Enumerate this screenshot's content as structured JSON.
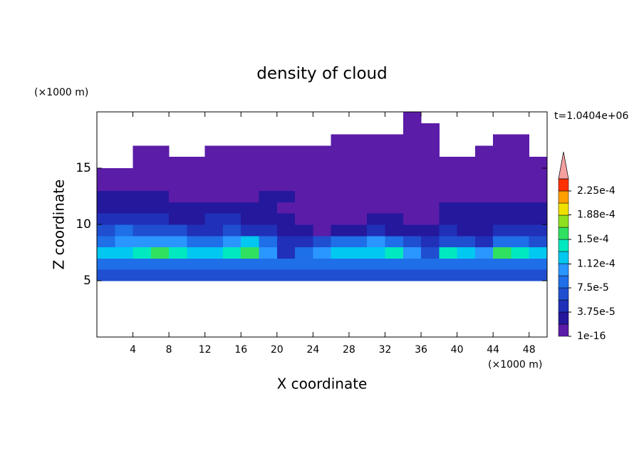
{
  "chart_data": {
    "type": "contour",
    "title": "density of cloud",
    "x_label": "X coordinate",
    "y_label": "Z coordinate",
    "x_unit": "(×1000 m)",
    "y_unit": "(×1000 m)",
    "annotation": "t=1.0404e+06",
    "xlim": [
      0,
      50
    ],
    "ylim": [
      0,
      20
    ],
    "xticks": [
      4,
      8,
      12,
      16,
      20,
      24,
      28,
      32,
      36,
      40,
      44,
      48
    ],
    "yticks": [
      5,
      10,
      15
    ],
    "x": [
      1,
      3,
      5,
      7,
      9,
      11,
      13,
      15,
      17,
      19,
      21,
      23,
      25,
      27,
      29,
      31,
      33,
      35,
      37,
      39,
      41,
      43,
      45,
      47,
      49
    ],
    "y": [
      5.5,
      6.5,
      7.5,
      8.5,
      9.5,
      10.5,
      11.5,
      12.5,
      13.5,
      14.5,
      15.5,
      16.5,
      17.5,
      18.5,
      19.5
    ],
    "z": [
      [
        6e-05,
        6e-05,
        6e-05,
        6e-05,
        6e-05,
        6e-05,
        6e-05,
        6e-05,
        6e-05,
        6e-05,
        6e-05,
        6e-05,
        6e-05,
        6e-05,
        6e-05,
        6e-05,
        6e-05,
        6e-05,
        6e-05,
        6e-05,
        6e-05,
        6e-05,
        6e-05,
        6e-05,
        6e-05
      ],
      [
        8e-05,
        8e-05,
        8e-05,
        8e-05,
        8e-05,
        8e-05,
        8e-05,
        8e-05,
        8e-05,
        8e-05,
        8e-05,
        8e-05,
        8e-05,
        8e-05,
        8e-05,
        8e-05,
        8e-05,
        8e-05,
        8e-05,
        8e-05,
        8e-05,
        8e-05,
        8e-05,
        8e-05,
        8e-05
      ],
      [
        0.00012,
        0.00013,
        0.00014,
        0.00015,
        0.00014,
        0.00013,
        0.00012,
        0.00014,
        0.00015,
        0.0001,
        5e-05,
        9e-05,
        0.00011,
        0.00012,
        0.00013,
        0.00013,
        0.00014,
        0.00011,
        6e-05,
        0.00014,
        0.00013,
        0.0001,
        0.00015,
        0.00014,
        0.00012
      ],
      [
        9e-05,
        0.0001,
        0.0001,
        0.00011,
        0.0001,
        9e-05,
        8e-05,
        0.0001,
        0.00012,
        9e-05,
        4e-05,
        5e-05,
        7e-05,
        8e-05,
        9e-05,
        0.0001,
        9e-05,
        6e-05,
        4e-05,
        6e-05,
        7e-05,
        5e-05,
        8e-05,
        9e-05,
        7e-05
      ],
      [
        7e-05,
        8e-05,
        7e-05,
        6e-05,
        6e-05,
        5e-05,
        5e-05,
        6e-05,
        5e-05,
        4e-05,
        3e-05,
        2e-05,
        1e-05,
        2e-05,
        3e-05,
        4e-05,
        3e-05,
        3e-05,
        3e-05,
        4e-05,
        3e-05,
        3e-05,
        4e-05,
        4e-05,
        4e-05
      ],
      [
        5e-05,
        5e-05,
        4e-05,
        4e-05,
        3e-05,
        3e-05,
        4e-05,
        4e-05,
        3e-05,
        2e-05,
        2e-05,
        1e-05,
        1e-05,
        1e-05,
        1e-05,
        2e-05,
        2e-05,
        1e-05,
        1e-05,
        2e-05,
        2e-05,
        2e-05,
        3e-05,
        3e-05,
        3e-05
      ],
      [
        3e-05,
        3e-05,
        3e-05,
        2e-05,
        2e-05,
        2e-05,
        2e-05,
        3e-05,
        2e-05,
        2e-05,
        1e-05,
        1e-05,
        1e-05,
        1e-05,
        1e-05,
        1e-05,
        1e-05,
        1e-05,
        1e-05,
        2e-05,
        2e-05,
        2e-05,
        2e-05,
        2e-05,
        2e-05
      ],
      [
        2e-05,
        2e-05,
        2e-05,
        2e-05,
        1e-05,
        1e-05,
        1e-05,
        1e-05,
        1e-05,
        2e-05,
        2e-05,
        1e-05,
        1e-05,
        1e-05,
        1e-05,
        1e-05,
        1e-05,
        1e-05,
        1e-05,
        1e-05,
        1e-05,
        1e-05,
        1e-05,
        1e-05,
        1e-05
      ],
      [
        1e-05,
        1e-05,
        1e-05,
        1e-05,
        1e-05,
        1e-05,
        1e-05,
        1e-05,
        1e-05,
        1e-05,
        1e-05,
        1e-05,
        1e-05,
        1e-05,
        1e-05,
        1e-05,
        1e-05,
        1e-05,
        1e-05,
        1e-05,
        1e-05,
        1e-05,
        1e-05,
        1e-05,
        1e-05
      ],
      [
        1e-05,
        1e-05,
        1e-05,
        1e-05,
        1e-05,
        1e-05,
        1e-05,
        1e-05,
        1e-05,
        1e-05,
        1e-05,
        1e-05,
        1e-05,
        1e-05,
        1e-05,
        1e-05,
        1e-05,
        1e-05,
        1e-05,
        1e-05,
        1e-05,
        1e-05,
        1e-05,
        1e-05,
        1e-05
      ],
      [
        null,
        null,
        1e-05,
        1e-05,
        1e-05,
        1e-05,
        1e-05,
        1e-05,
        1e-05,
        1e-05,
        1e-05,
        1e-05,
        1e-05,
        1e-05,
        1e-05,
        1e-05,
        1e-05,
        1e-05,
        1e-05,
        1e-05,
        1e-05,
        1e-05,
        1e-05,
        1e-05,
        1e-05
      ],
      [
        null,
        null,
        1e-05,
        1e-05,
        null,
        null,
        1e-05,
        1e-05,
        1e-05,
        1e-05,
        1e-05,
        1e-05,
        1e-05,
        1e-05,
        1e-05,
        1e-05,
        1e-05,
        1e-05,
        1e-05,
        null,
        null,
        1e-05,
        1e-05,
        1e-05,
        null
      ],
      [
        null,
        null,
        null,
        null,
        null,
        null,
        null,
        null,
        null,
        null,
        null,
        null,
        null,
        1e-05,
        1e-05,
        1e-05,
        1e-05,
        1e-05,
        1e-05,
        null,
        null,
        null,
        1e-05,
        1e-05,
        null
      ],
      [
        null,
        null,
        null,
        null,
        null,
        null,
        null,
        null,
        null,
        null,
        null,
        null,
        null,
        null,
        null,
        null,
        null,
        1e-05,
        1e-05,
        null,
        null,
        null,
        null,
        null,
        null
      ],
      [
        null,
        null,
        null,
        null,
        null,
        null,
        null,
        null,
        null,
        null,
        null,
        null,
        null,
        null,
        null,
        null,
        null,
        1e-05,
        null,
        null,
        null,
        null,
        null,
        null,
        null
      ]
    ],
    "levels": [
      1e-16,
      1.875e-05,
      3.75e-05,
      5.625e-05,
      7.5e-05,
      9.375e-05,
      0.0001125,
      0.00013125,
      0.00015,
      0.00016875,
      0.0001875,
      0.00020625,
      0.000225,
      0.00024375
    ],
    "colors": [
      "#5b1ca8",
      "#24189c",
      "#2030b8",
      "#1f4fd0",
      "#1e6fe8",
      "#2a96ff",
      "#00c8f0",
      "#00e8c0",
      "#30e060",
      "#90e020",
      "#f0e000",
      "#ffa000",
      "#ff3000"
    ],
    "extend_color": "#f4a0a0",
    "colorbar_ticks": [
      {
        "value": 1e-16,
        "label": "1e-16"
      },
      {
        "value": 3.75e-05,
        "label": "3.75e-5"
      },
      {
        "value": 7.5e-05,
        "label": "7.5e-5"
      },
      {
        "value": 0.000112,
        "label": "1.12e-4"
      },
      {
        "value": 0.00015,
        "label": "1.5e-4"
      },
      {
        "value": 0.000188,
        "label": "1.88e-4"
      },
      {
        "value": 0.000225,
        "label": "2.25e-4"
      }
    ]
  }
}
